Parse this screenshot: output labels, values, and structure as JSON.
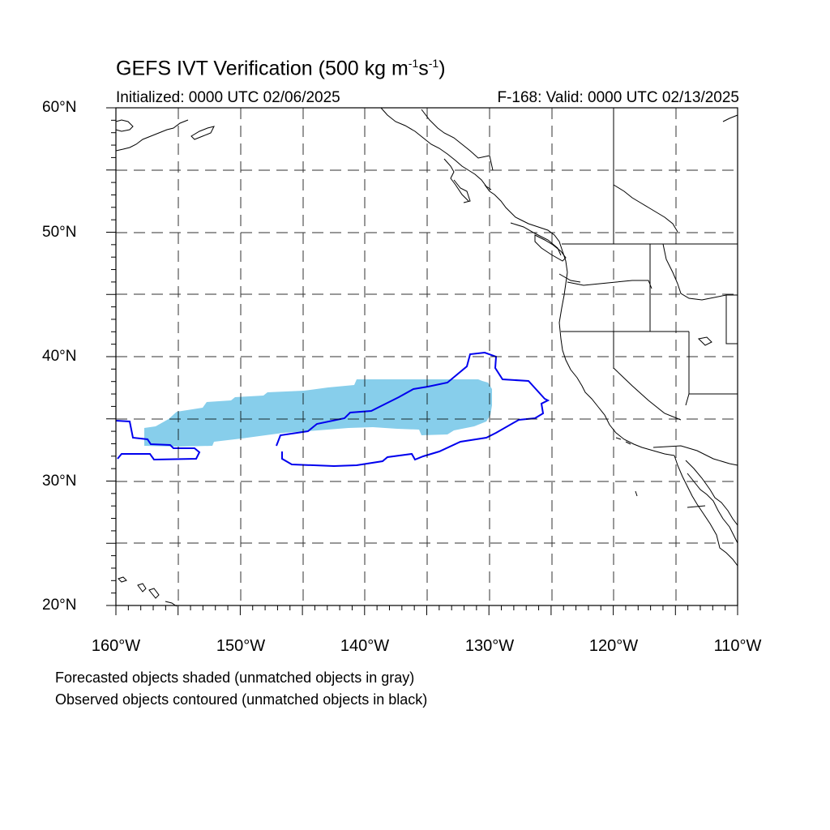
{
  "title": {
    "main": "GEFS IVT Verification (500 kg m",
    "sup1": "-1",
    "mid": "s",
    "sup2": "-1",
    "end": ")"
  },
  "subtitle_left": "Initialized: 0000 UTC 02/06/2025",
  "subtitle_right": "F-168: Valid: 0000 UTC 02/13/2025",
  "lat_labels": [
    "60°N",
    "50°N",
    "40°N",
    "30°N",
    "20°N"
  ],
  "lon_labels": [
    "160°W",
    "150°W",
    "140°W",
    "130°W",
    "120°W",
    "110°W"
  ],
  "notes": [
    "Forecasted objects shaded (unmatched objects in gray)",
    "Observed objects contoured (unmatched objects in black)"
  ],
  "colors": {
    "forecast_fill": "#87ceeb",
    "observed_contour": "#0000ee",
    "coast": "#000000",
    "grid": "#000000"
  },
  "map_extent": {
    "lon_min": -160,
    "lon_max": -110,
    "lat_min": 20,
    "lat_max": 60,
    "grid_step_deg": 5
  }
}
